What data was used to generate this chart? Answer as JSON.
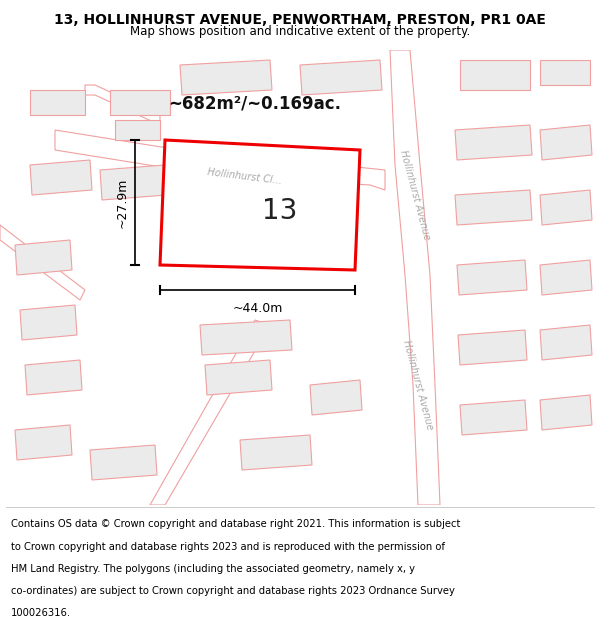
{
  "title": "13, HOLLINHURST AVENUE, PENWORTHAM, PRESTON, PR1 0AE",
  "subtitle": "Map shows position and indicative extent of the property.",
  "area_label": "~682m²/~0.169ac.",
  "plot_number": "13",
  "dim_width": "~44.0m",
  "dim_height": "~27.9m",
  "map_bg": "#f7f5f2",
  "plot_fill": "#ffffff",
  "plot_edge_color": "#ee0000",
  "building_fill": "#ebebeb",
  "building_edge": "#f0a0a0",
  "road_fill": "#ffffff",
  "road_edge": "#f0a0a0",
  "street_label_color": "#aaaaaa",
  "title_fontsize": 10,
  "subtitle_fontsize": 8.5,
  "footer_fontsize": 7.2,
  "footer_lines": [
    "Contains OS data © Crown copyright and database right 2021. This information is subject",
    "to Crown copyright and database rights 2023 and is reproduced with the permission of",
    "HM Land Registry. The polygons (including the associated geometry, namely x, y",
    "co-ordinates) are subject to Crown copyright and database rights 2023 Ordnance Survey",
    "100026316."
  ]
}
